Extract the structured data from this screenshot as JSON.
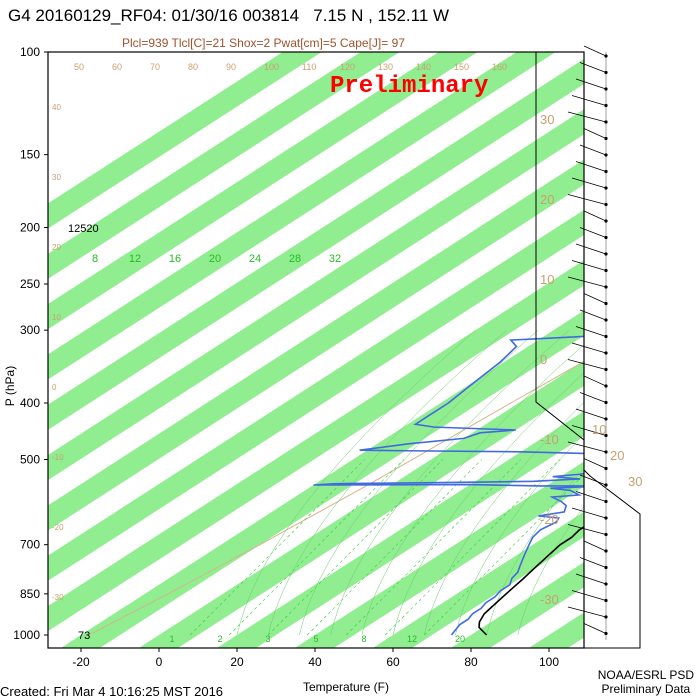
{
  "page": {
    "title": "G4 20160129_RF04: 01/30/16 003814   7.15 N , 152.11 W",
    "subtitle": "Plcl=939 Tlcl[C]=21 Shox=2 Pwat[cm]=5 Cape[J]= 97",
    "watermark": "Preliminary",
    "footer_left": "Created: Fri Mar  4 10:16:25 MST 2016",
    "footer_right_1": "NOAA/ESRL PSD",
    "footer_right_2": "Preliminary Data",
    "top_height_label": "12520",
    "bottom_height_label": "73"
  },
  "chart_data": {
    "type": "line",
    "subtype": "skew-T log-P",
    "xlabel": "Temperature (F)",
    "ylabel": "P (hPa)",
    "x_ticks": [
      "-20",
      "0",
      "20",
      "40",
      "60",
      "80",
      "100"
    ],
    "y_ticks": [
      "100",
      "150",
      "200",
      "250",
      "300",
      "400",
      "500",
      "700",
      "850",
      "1000"
    ],
    "xlim": [
      -28,
      108
    ],
    "ylim": [
      1050,
      100
    ],
    "y_scale": "log",
    "band_color": "#90ee90",
    "temperature_color": "#000000",
    "dewpoint_color": "#4169e1",
    "parcel_color": "#ff0000",
    "mixing_ratio_labels": [
      "8",
      "12",
      "16",
      "20",
      "24",
      "28",
      "32"
    ],
    "mixing_ratio_bottom_labels": [
      "1",
      "2",
      "3",
      "5",
      "8",
      "12",
      "20"
    ],
    "isotherm_labels": [
      "50",
      "60",
      "70",
      "80",
      "90",
      "100",
      "110",
      "120",
      "130",
      "140",
      "150",
      "160"
    ],
    "isotherm_side_labels": [
      "30",
      "20",
      "10",
      "0",
      "-10",
      "-20",
      "-30"
    ],
    "adiabat_side_labels": [
      "40",
      "30",
      "20",
      "10",
      "0",
      "-10",
      "-20",
      "-30"
    ],
    "wind_panel_side_labels": [
      "10",
      "20",
      "30"
    ],
    "series": [
      {
        "name": "Temperature",
        "points": [
          [
            84,
            1000
          ],
          [
            79,
            970
          ],
          [
            77,
            950
          ],
          [
            75,
            920
          ],
          [
            74,
            890
          ],
          [
            73,
            860
          ],
          [
            72,
            830
          ],
          [
            71,
            800
          ],
          [
            70,
            775
          ],
          [
            69,
            750
          ],
          [
            68,
            725
          ],
          [
            67,
            700
          ],
          [
            67,
            680
          ],
          [
            66,
            660
          ],
          [
            66,
            640
          ],
          [
            65,
            620
          ],
          [
            65,
            600
          ],
          [
            64,
            585
          ],
          [
            63,
            570
          ],
          [
            64,
            555
          ],
          [
            64,
            540
          ],
          [
            65,
            525
          ],
          [
            65,
            510
          ],
          [
            64,
            495
          ],
          [
            63,
            480
          ],
          [
            62,
            465
          ],
          [
            63,
            450
          ],
          [
            62,
            435
          ],
          [
            60,
            420
          ],
          [
            59,
            410
          ],
          [
            57,
            395
          ],
          [
            55,
            380
          ],
          [
            53,
            365
          ],
          [
            51,
            350
          ],
          [
            50,
            335
          ],
          [
            48,
            320
          ],
          [
            47,
            305
          ],
          [
            45,
            290
          ],
          [
            43,
            275
          ],
          [
            41,
            260
          ],
          [
            39,
            248
          ],
          [
            37,
            236
          ],
          [
            35,
            224
          ],
          [
            33,
            212
          ],
          [
            31,
            200
          ],
          [
            30,
            192
          ],
          [
            29,
            185
          ]
        ]
      },
      {
        "name": "Dewpoint",
        "points": [
          [
            75,
            1000
          ],
          [
            74,
            980
          ],
          [
            73,
            960
          ],
          [
            73,
            940
          ],
          [
            72,
            920
          ],
          [
            72,
            900
          ],
          [
            71,
            880
          ],
          [
            71,
            860
          ],
          [
            70,
            840
          ],
          [
            70,
            820
          ],
          [
            68,
            800
          ],
          [
            67,
            780
          ],
          [
            65,
            760
          ],
          [
            63,
            740
          ],
          [
            61,
            720
          ],
          [
            59,
            700
          ],
          [
            57,
            680
          ],
          [
            56,
            660
          ],
          [
            57,
            640
          ],
          [
            56,
            630
          ],
          [
            50,
            625
          ],
          [
            55,
            615
          ],
          [
            53,
            600
          ],
          [
            50,
            590
          ],
          [
            46,
            580
          ],
          [
            52,
            575
          ],
          [
            48,
            565
          ],
          [
            42,
            560
          ],
          [
            55,
            555
          ],
          [
            38,
            555
          ],
          [
            20,
            552
          ],
          [
            -20,
            553
          ],
          [
            -15,
            550
          ],
          [
            10,
            548
          ],
          [
            35,
            545
          ],
          [
            46,
            540
          ],
          [
            38,
            535
          ],
          [
            44,
            530
          ],
          [
            48,
            525
          ],
          [
            44,
            520
          ],
          [
            47,
            510
          ],
          [
            44,
            500
          ],
          [
            46,
            490
          ],
          [
            20,
            485
          ],
          [
            -10,
            483
          ],
          [
            -22,
            482
          ],
          [
            -12,
            470
          ],
          [
            0,
            460
          ],
          [
            2,
            450
          ],
          [
            10,
            445
          ],
          [
            -12,
            440
          ],
          [
            -18,
            435
          ],
          [
            -18,
            420
          ],
          [
            -18,
            400
          ],
          [
            -19,
            380
          ],
          [
            -20,
            360
          ],
          [
            -21,
            340
          ],
          [
            -23,
            320
          ],
          [
            -27,
            312
          ],
          [
            0,
            305
          ],
          [
            12,
            300
          ],
          [
            10,
            295
          ],
          [
            5,
            285
          ],
          [
            12,
            275
          ],
          [
            8,
            265
          ],
          [
            12,
            255
          ],
          [
            6,
            245
          ],
          [
            4,
            235
          ],
          [
            10,
            230
          ],
          [
            13,
            225
          ],
          [
            15,
            215
          ],
          [
            16,
            208
          ]
        ]
      },
      {
        "name": "Parcel",
        "points": [
          [
            59,
            420
          ],
          [
            57,
            400
          ],
          [
            55,
            380
          ],
          [
            53,
            360
          ],
          [
            51,
            340
          ],
          [
            49,
            320
          ],
          [
            47,
            300
          ],
          [
            45,
            280
          ],
          [
            43,
            265
          ],
          [
            41,
            252
          ]
        ]
      }
    ]
  }
}
